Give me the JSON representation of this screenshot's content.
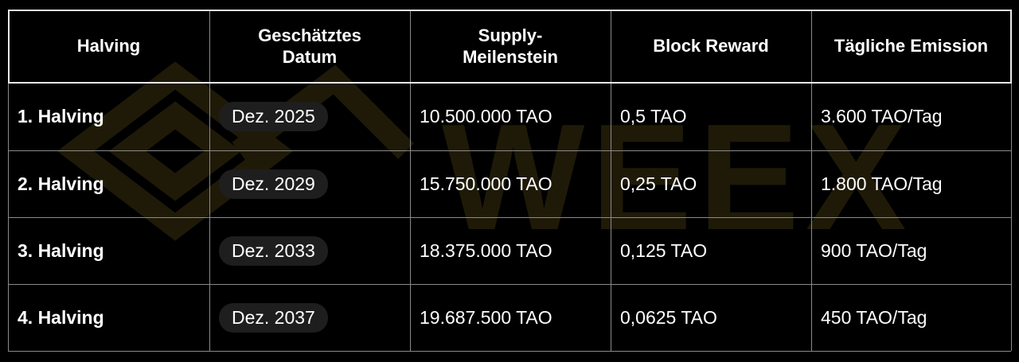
{
  "watermark": "WEEX",
  "table": {
    "headers": [
      [
        "Halving"
      ],
      [
        "Geschätztes",
        "Datum"
      ],
      [
        "Supply-",
        "Meilenstein"
      ],
      [
        "Block Reward"
      ],
      [
        "Tägliche Emission"
      ]
    ],
    "rows": [
      [
        "1. Halving",
        "Dez. 2025",
        "10.500.000 TAO",
        "0,5 TAO",
        "3.600 TAO/Tag"
      ],
      [
        "2. Halving",
        "Dez. 2029",
        "15.750.000 TAO",
        "0,25 TAO",
        "1.800 TAO/Tag"
      ],
      [
        "3. Halving",
        "Dez. 2033",
        "18.375.000 TAO",
        "0,125 TAO",
        "900 TAO/Tag"
      ],
      [
        "4. Halving",
        "Dez. 2037",
        "19.687.500 TAO",
        "0,0625 TAO",
        "450 TAO/Tag"
      ]
    ]
  }
}
